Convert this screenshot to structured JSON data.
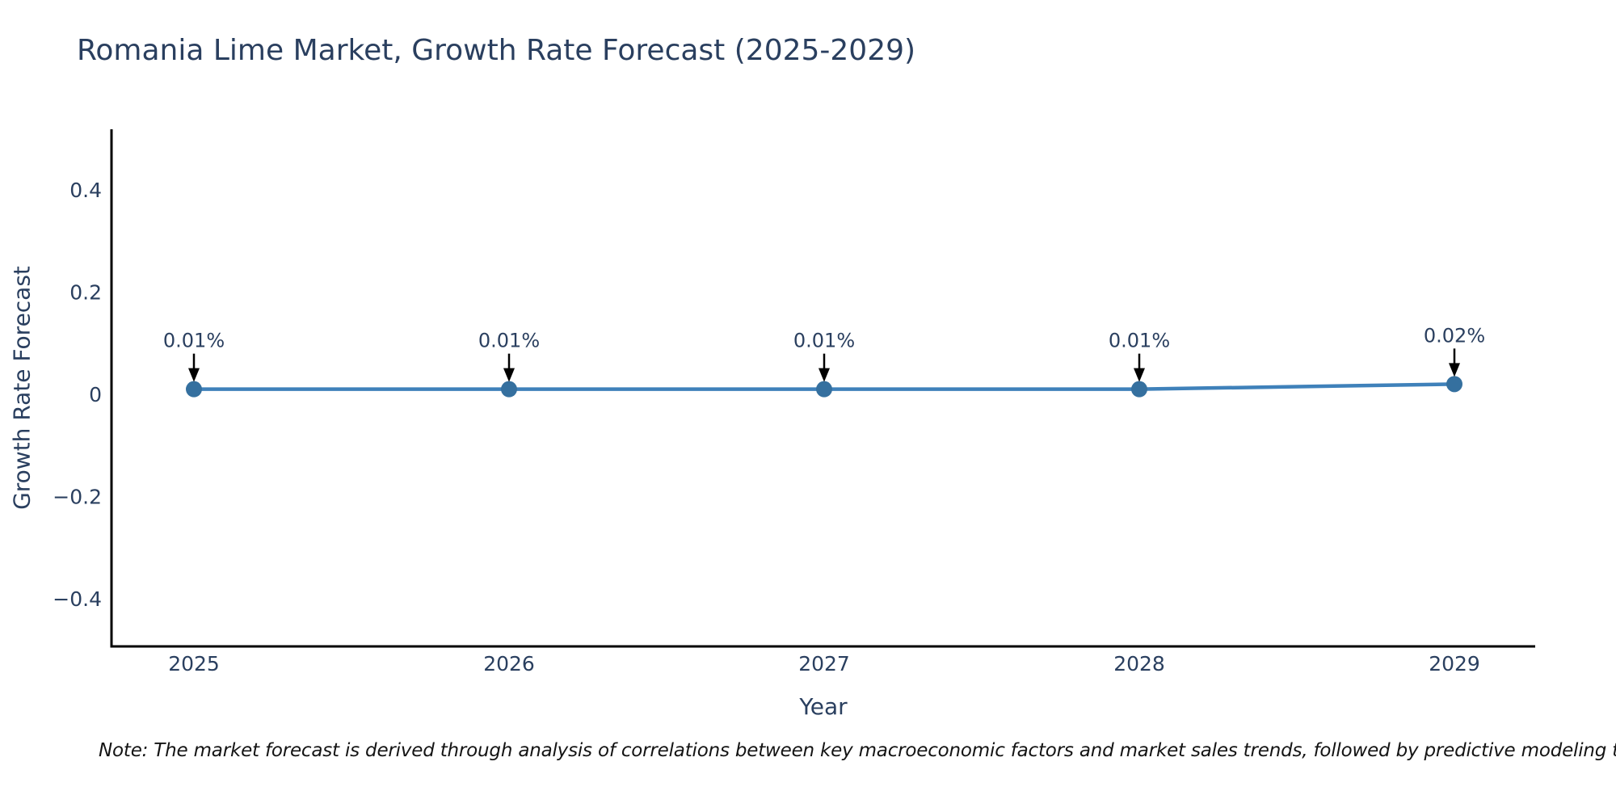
{
  "chart_data": {
    "type": "line",
    "title": "Romania Lime Market, Growth Rate Forecast (2025-2029)",
    "xlabel": "Year",
    "ylabel": "Growth Rate Forecast",
    "x": [
      2025,
      2026,
      2027,
      2028,
      2029
    ],
    "series": [
      {
        "name": "Growth Rate Forecast",
        "values": [
          0.01,
          0.01,
          0.01,
          0.01,
          0.02
        ]
      }
    ],
    "point_labels": [
      "0.01%",
      "0.01%",
      "0.01%",
      "0.01%",
      "0.02%"
    ],
    "yticks": [
      0.4,
      0.2,
      0,
      -0.2,
      -0.4
    ],
    "ytick_labels": [
      "0.4",
      "0.2",
      "0",
      "−0.2",
      "−0.4"
    ],
    "xtick_labels": [
      "2025",
      "2026",
      "2027",
      "2028",
      "2029"
    ],
    "ylim": [
      -0.5,
      0.52
    ],
    "grid": false,
    "legend_position": "none",
    "colors": {
      "line": "#3f81ba",
      "marker": "#35709f",
      "axis": "#000000",
      "text": "#2a3f5f",
      "annotation_arrow": "#000000",
      "background": "#ffffff"
    }
  },
  "note": "Note: The market forecast is derived through analysis of correlations between key macroeconomic factors and market sales trends, followed by predictive modeling to project future sa"
}
